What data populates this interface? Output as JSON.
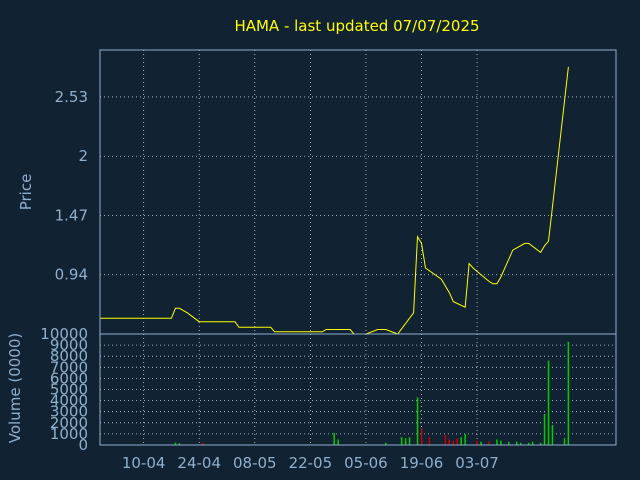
{
  "chart_data": [
    {
      "type": "line",
      "title": "HAMA - last updated 07/07/2025",
      "ylabel": "Price",
      "ylim": [
        0.41,
        2.95
      ],
      "yticks": [
        "0.94",
        "1.47",
        "2",
        "2.53"
      ],
      "xlim": [
        0,
        130
      ],
      "x_ticks": [
        {
          "label": "10-04",
          "x": 11
        },
        {
          "label": "24-04",
          "x": 25
        },
        {
          "label": "08-05",
          "x": 39
        },
        {
          "label": "22-05",
          "x": 53
        },
        {
          "label": "05-06",
          "x": 67
        },
        {
          "label": "19-06",
          "x": 81
        },
        {
          "label": "03-07",
          "x": 95
        }
      ],
      "grid": true,
      "colors": {
        "line": "#ffff00",
        "background": "#112233",
        "text": "#8fb0cc",
        "grid": "#c8d4e0"
      },
      "series": [
        {
          "x": [
            0,
            17,
            18,
            19,
            20,
            22,
            25,
            27,
            34,
            35,
            43,
            44,
            56,
            57,
            63,
            64,
            67,
            70,
            72,
            75,
            79,
            80,
            81,
            82,
            86,
            87,
            88,
            89,
            92,
            93,
            94,
            96,
            98,
            99,
            100,
            101,
            104,
            106,
            107,
            108,
            111,
            112,
            113,
            114,
            118
          ],
          "y": [
            0.55,
            0.55,
            0.55,
            0.64,
            0.64,
            0.6,
            0.52,
            0.52,
            0.52,
            0.47,
            0.47,
            0.43,
            0.43,
            0.45,
            0.45,
            0.41,
            0.41,
            0.45,
            0.45,
            0.41,
            0.6,
            1.28,
            1.22,
            1.0,
            0.9,
            0.84,
            0.78,
            0.7,
            0.65,
            1.04,
            1.0,
            0.94,
            0.88,
            0.86,
            0.86,
            0.92,
            1.16,
            1.2,
            1.22,
            1.22,
            1.14,
            1.2,
            1.24,
            1.55,
            2.8
          ]
        }
      ]
    },
    {
      "type": "bar",
      "ylabel": "Volume (0000)",
      "ylim": [
        0,
        10000
      ],
      "yticks": [
        "0",
        "1000",
        "2000",
        "3000",
        "4000",
        "5000",
        "6000",
        "7000",
        "8000",
        "9000",
        "10000"
      ],
      "grid": true,
      "up_color": "#00cc00",
      "down_color": "#cc0000",
      "bars": [
        {
          "x": 19,
          "value": 220,
          "dir": "up"
        },
        {
          "x": 20,
          "value": 160,
          "dir": "up"
        },
        {
          "x": 26,
          "value": 200,
          "dir": "down"
        },
        {
          "x": 59,
          "value": 1100,
          "dir": "up"
        },
        {
          "x": 60,
          "value": 500,
          "dir": "up"
        },
        {
          "x": 72,
          "value": 200,
          "dir": "up"
        },
        {
          "x": 76,
          "value": 700,
          "dir": "up"
        },
        {
          "x": 77,
          "value": 600,
          "dir": "up"
        },
        {
          "x": 78,
          "value": 700,
          "dir": "up"
        },
        {
          "x": 80,
          "value": 4300,
          "dir": "up"
        },
        {
          "x": 81,
          "value": 1500,
          "dir": "down"
        },
        {
          "x": 83,
          "value": 700,
          "dir": "down"
        },
        {
          "x": 87,
          "value": 900,
          "dir": "down"
        },
        {
          "x": 88,
          "value": 500,
          "dir": "down"
        },
        {
          "x": 89,
          "value": 400,
          "dir": "down"
        },
        {
          "x": 90,
          "value": 600,
          "dir": "down"
        },
        {
          "x": 91,
          "value": 700,
          "dir": "up"
        },
        {
          "x": 92,
          "value": 1000,
          "dir": "up"
        },
        {
          "x": 95,
          "value": 400,
          "dir": "down"
        },
        {
          "x": 96,
          "value": 300,
          "dir": "up"
        },
        {
          "x": 98,
          "value": 300,
          "dir": "down"
        },
        {
          "x": 100,
          "value": 500,
          "dir": "up"
        },
        {
          "x": 101,
          "value": 400,
          "dir": "up"
        },
        {
          "x": 103,
          "value": 300,
          "dir": "up"
        },
        {
          "x": 105,
          "value": 300,
          "dir": "up"
        },
        {
          "x": 106,
          "value": 200,
          "dir": "up"
        },
        {
          "x": 108,
          "value": 200,
          "dir": "up"
        },
        {
          "x": 109,
          "value": 300,
          "dir": "up"
        },
        {
          "x": 111,
          "value": 200,
          "dir": "up"
        },
        {
          "x": 112,
          "value": 2800,
          "dir": "up"
        },
        {
          "x": 113,
          "value": 7600,
          "dir": "up"
        },
        {
          "x": 114,
          "value": 1800,
          "dir": "up"
        },
        {
          "x": 117,
          "value": 600,
          "dir": "up"
        },
        {
          "x": 118,
          "value": 9300,
          "dir": "up"
        }
      ]
    }
  ]
}
